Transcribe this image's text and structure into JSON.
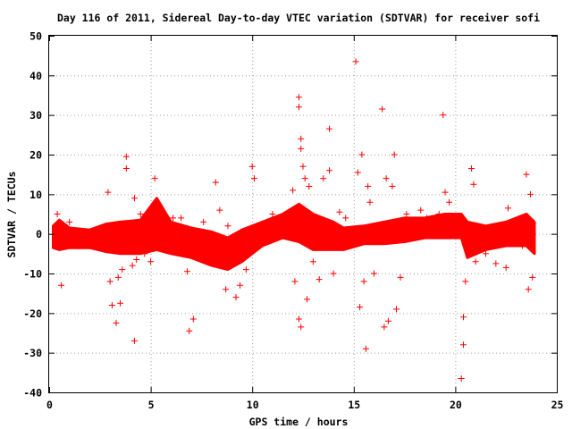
{
  "chart_data": {
    "type": "scatter",
    "title": "Day 116 of 2011, Sidereal Day-to-day VTEC variation (SDTVAR) for receiver sofi",
    "xlabel": "GPS time / hours",
    "ylabel": "SDTVAR / TECUs",
    "xlim": [
      0,
      25
    ],
    "ylim": [
      -40,
      50
    ],
    "x_ticks": [
      "0",
      "5",
      "10",
      "15",
      "20",
      "25"
    ],
    "y_ticks": [
      "-40",
      "-30",
      "-20",
      "-10",
      "0",
      "10",
      "20",
      "30",
      "40",
      "50"
    ],
    "grid": true,
    "marker": "plus",
    "series_color": "#ff0000",
    "band": [
      [
        0.2,
        -3.5,
        2.0
      ],
      [
        0.5,
        -4.0,
        3.5
      ],
      [
        1.0,
        -3.5,
        1.5
      ],
      [
        2.0,
        -3.5,
        1.0
      ],
      [
        2.8,
        -4.5,
        2.5
      ],
      [
        3.5,
        -5.0,
        3.0
      ],
      [
        4.5,
        -5.0,
        3.5
      ],
      [
        5.3,
        -4.0,
        9.0
      ],
      [
        6.0,
        -5.0,
        3.0
      ],
      [
        7.0,
        -6.0,
        1.5
      ],
      [
        8.0,
        -8.0,
        0.5
      ],
      [
        8.8,
        -9.0,
        -1.0
      ],
      [
        9.5,
        -7.0,
        1.0
      ],
      [
        10.5,
        -3.0,
        3.0
      ],
      [
        11.5,
        -1.0,
        5.0
      ],
      [
        12.3,
        -2.0,
        7.5
      ],
      [
        13.0,
        -4.0,
        5.0
      ],
      [
        14.0,
        -4.0,
        3.0
      ],
      [
        14.5,
        -4.0,
        1.5
      ],
      [
        15.5,
        -2.5,
        2.0
      ],
      [
        16.5,
        -2.5,
        3.0
      ],
      [
        17.5,
        -2.0,
        4.0
      ],
      [
        18.5,
        -1.0,
        4.0
      ],
      [
        19.5,
        -1.0,
        5.0
      ],
      [
        20.3,
        -1.0,
        5.0
      ],
      [
        20.6,
        -6.0,
        3.0
      ],
      [
        21.5,
        -4.0,
        2.0
      ],
      [
        22.5,
        -3.0,
        3.0
      ],
      [
        23.5,
        -3.0,
        5.0
      ],
      [
        23.9,
        -5.0,
        3.0
      ]
    ],
    "points": [
      [
        0.6,
        -13
      ],
      [
        0.4,
        5
      ],
      [
        1.0,
        3
      ],
      [
        2.9,
        10.5
      ],
      [
        3.0,
        -12
      ],
      [
        3.1,
        -18
      ],
      [
        3.3,
        -22.5
      ],
      [
        3.4,
        -11
      ],
      [
        3.5,
        -17.5
      ],
      [
        3.8,
        19.5
      ],
      [
        3.8,
        16.5
      ],
      [
        3.6,
        -9
      ],
      [
        4.1,
        -8
      ],
      [
        4.2,
        9
      ],
      [
        4.2,
        -27
      ],
      [
        4.3,
        -6.5
      ],
      [
        4.5,
        5
      ],
      [
        4.7,
        -5
      ],
      [
        5.2,
        14
      ],
      [
        5.0,
        -7
      ],
      [
        6.1,
        4
      ],
      [
        6.5,
        4
      ],
      [
        6.8,
        -9.5
      ],
      [
        6.9,
        -24.5
      ],
      [
        7.1,
        -21.5
      ],
      [
        7.6,
        3
      ],
      [
        8.2,
        13
      ],
      [
        8.4,
        6
      ],
      [
        8.7,
        -14
      ],
      [
        8.8,
        2
      ],
      [
        9.2,
        -16
      ],
      [
        9.4,
        -13
      ],
      [
        9.7,
        -9
      ],
      [
        10.0,
        17
      ],
      [
        10.1,
        14
      ],
      [
        10.2,
        -1
      ],
      [
        11.0,
        5
      ],
      [
        11.6,
        4
      ],
      [
        12.0,
        11
      ],
      [
        12.1,
        -12
      ],
      [
        12.2,
        5
      ],
      [
        12.3,
        34.5
      ],
      [
        12.3,
        32
      ],
      [
        12.4,
        24
      ],
      [
        12.4,
        21.5
      ],
      [
        12.5,
        17
      ],
      [
        12.3,
        -21.5
      ],
      [
        12.4,
        -23.5
      ],
      [
        12.6,
        14
      ],
      [
        12.7,
        -16.5
      ],
      [
        12.8,
        12
      ],
      [
        13.0,
        -7
      ],
      [
        13.3,
        -11.5
      ],
      [
        13.5,
        14
      ],
      [
        13.8,
        26.5
      ],
      [
        13.8,
        16
      ],
      [
        14.0,
        -10
      ],
      [
        14.3,
        5.5
      ],
      [
        14.6,
        4
      ],
      [
        14.8,
        0
      ],
      [
        15.1,
        43.5
      ],
      [
        15.2,
        15.5
      ],
      [
        15.3,
        -18.5
      ],
      [
        15.4,
        20
      ],
      [
        15.5,
        -12
      ],
      [
        15.6,
        -29
      ],
      [
        15.7,
        12
      ],
      [
        15.8,
        8
      ],
      [
        16.0,
        -10
      ],
      [
        16.4,
        31.5
      ],
      [
        16.5,
        -23.5
      ],
      [
        16.6,
        14
      ],
      [
        16.7,
        -22
      ],
      [
        16.9,
        12
      ],
      [
        17.0,
        20
      ],
      [
        17.1,
        -19
      ],
      [
        17.3,
        -11
      ],
      [
        17.6,
        5
      ],
      [
        18.3,
        6
      ],
      [
        18.6,
        4
      ],
      [
        19.2,
        5
      ],
      [
        19.4,
        30
      ],
      [
        19.5,
        10.5
      ],
      [
        19.7,
        8
      ],
      [
        20.3,
        -36.5
      ],
      [
        20.4,
        -28
      ],
      [
        20.4,
        -21
      ],
      [
        20.5,
        -12
      ],
      [
        20.8,
        16.5
      ],
      [
        20.9,
        12.5
      ],
      [
        21.0,
        -7
      ],
      [
        21.5,
        -5
      ],
      [
        22.0,
        -7.5
      ],
      [
        22.5,
        -8.5
      ],
      [
        22.6,
        6.5
      ],
      [
        23.3,
        -3
      ],
      [
        23.5,
        15
      ],
      [
        23.6,
        -14
      ],
      [
        23.7,
        10
      ],
      [
        23.8,
        -11
      ]
    ]
  }
}
